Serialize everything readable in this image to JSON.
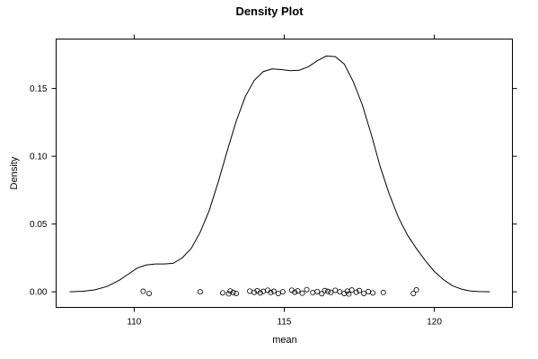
{
  "chart_data": {
    "type": "line",
    "title": "Density Plot",
    "xlabel": "mean",
    "ylabel": "Density",
    "xlim": [
      107.4,
      122.6
    ],
    "ylim": [
      -0.0115,
      0.1865
    ],
    "x_ticks": [
      110,
      115,
      120
    ],
    "y_ticks": [
      0.0,
      0.05,
      0.1,
      0.15
    ],
    "y_tick_labels": [
      "0.00",
      "0.05",
      "0.10",
      "0.15"
    ],
    "grid": false,
    "series": [
      {
        "kind": "density",
        "x": [
          107.85,
          108.3,
          108.7,
          109.1,
          109.5,
          109.8,
          110.1,
          110.4,
          110.7,
          111.0,
          111.3,
          111.6,
          111.9,
          112.2,
          112.5,
          112.8,
          113.1,
          113.4,
          113.7,
          114.0,
          114.3,
          114.6,
          114.9,
          115.2,
          115.5,
          115.8,
          116.1,
          116.4,
          116.7,
          117.0,
          117.3,
          117.6,
          117.9,
          118.2,
          118.5,
          118.8,
          119.1,
          119.4,
          119.7,
          120.0,
          120.3,
          120.6,
          120.9,
          121.2,
          121.5,
          121.85
        ],
        "y": [
          0.0,
          0.0004,
          0.0015,
          0.004,
          0.0085,
          0.013,
          0.0175,
          0.0198,
          0.0205,
          0.0205,
          0.021,
          0.025,
          0.032,
          0.044,
          0.06,
          0.081,
          0.104,
          0.126,
          0.144,
          0.156,
          0.1625,
          0.1645,
          0.164,
          0.1632,
          0.1635,
          0.166,
          0.1705,
          0.174,
          0.1735,
          0.168,
          0.155,
          0.138,
          0.116,
          0.092,
          0.072,
          0.055,
          0.042,
          0.032,
          0.023,
          0.015,
          0.009,
          0.0045,
          0.002,
          0.0006,
          0.0002,
          0.0
        ]
      },
      {
        "kind": "rug",
        "x": [
          110.3,
          110.5,
          112.2,
          112.95,
          113.15,
          113.3,
          113.2,
          113.4,
          113.85,
          114.0,
          114.1,
          114.2,
          114.3,
          114.45,
          114.55,
          114.65,
          114.8,
          114.95,
          115.25,
          115.35,
          115.45,
          115.6,
          115.75,
          115.95,
          116.1,
          116.25,
          116.35,
          116.45,
          116.55,
          116.7,
          116.85,
          117.0,
          117.1,
          117.15,
          117.25,
          117.4,
          117.5,
          117.65,
          117.8,
          117.95,
          118.3,
          119.3,
          119.4
        ],
        "y": [
          0.0004,
          -0.0012,
          0.0,
          -0.0008,
          -0.0015,
          -0.0005,
          0.0006,
          -0.0012,
          0.0005,
          -0.0004,
          0.0008,
          -0.0008,
          0.0003,
          0.0012,
          -0.0005,
          0.0004,
          -0.0012,
          0.0,
          0.0012,
          -0.0003,
          0.0007,
          -0.001,
          0.0016,
          -0.0006,
          0.0002,
          -0.0014,
          0.0009,
          0.0003,
          -0.0004,
          0.0011,
          0.0,
          -0.0012,
          0.0005,
          -0.0016,
          0.0013,
          -0.0003,
          0.0009,
          -0.0012,
          0.0002,
          -0.0008,
          -0.0005,
          -0.0012,
          0.0014
        ]
      }
    ]
  }
}
